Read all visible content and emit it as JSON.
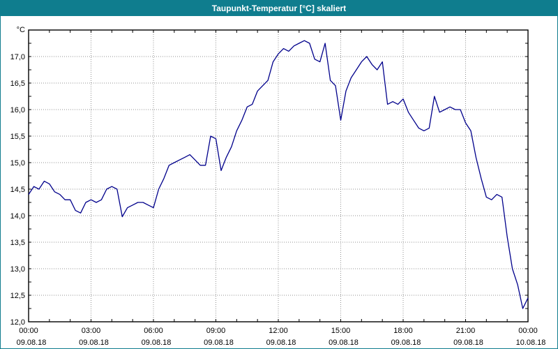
{
  "window": {
    "title": "Taupunkt-Temperatur [°C] skaliert"
  },
  "colors": {
    "titlebar": "#0f7d8e",
    "line": "#00008b",
    "grid": "#909090",
    "axis": "#000000"
  },
  "chart_data": {
    "type": "line",
    "title": "Taupunkt-Temperatur [°C] skaliert",
    "xlabel": "",
    "ylabel": "°C",
    "ylim": [
      12.0,
      17.5
    ],
    "xlim_hours": [
      0,
      24
    ],
    "grid": true,
    "legend": "none",
    "y_ticks": [
      {
        "label": "17,0",
        "value": 17.0
      },
      {
        "label": "16,5",
        "value": 16.5
      },
      {
        "label": "16,0",
        "value": 16.0
      },
      {
        "label": "15,5",
        "value": 15.5
      },
      {
        "label": "15,0",
        "value": 15.0
      },
      {
        "label": "14,5",
        "value": 14.5
      },
      {
        "label": "14,0",
        "value": 14.0
      },
      {
        "label": "13,5",
        "value": 13.5
      },
      {
        "label": "13,0",
        "value": 13.0
      },
      {
        "label": "12,5",
        "value": 12.5
      },
      {
        "label": "12,0",
        "value": 12.0
      }
    ],
    "x_ticks": [
      {
        "time": "00:00",
        "date": "09.08.18",
        "hour": 0
      },
      {
        "time": "03:00",
        "date": "09.08.18",
        "hour": 3
      },
      {
        "time": "06:00",
        "date": "09.08.18",
        "hour": 6
      },
      {
        "time": "09:00",
        "date": "09.08.18",
        "hour": 9
      },
      {
        "time": "12:00",
        "date": "09.08.18",
        "hour": 12
      },
      {
        "time": "15:00",
        "date": "09.08.18",
        "hour": 15
      },
      {
        "time": "18:00",
        "date": "09.08.18",
        "hour": 18
      },
      {
        "time": "21:00",
        "date": "09.08.18",
        "hour": 21
      },
      {
        "time": "00:00",
        "date": "10.08.18",
        "hour": 24
      }
    ],
    "x_start": 0,
    "x_step": 0.25,
    "series": [
      {
        "name": "Taupunkt-Temperatur",
        "values": [
          14.4,
          14.55,
          14.5,
          14.65,
          14.6,
          14.45,
          14.4,
          14.3,
          14.3,
          14.1,
          14.05,
          14.25,
          14.3,
          14.25,
          14.3,
          14.5,
          14.55,
          14.5,
          13.98,
          14.15,
          14.2,
          14.25,
          14.25,
          14.2,
          14.15,
          14.5,
          14.7,
          14.95,
          15.0,
          15.05,
          15.1,
          15.15,
          15.05,
          14.95,
          14.95,
          15.5,
          15.45,
          14.85,
          15.1,
          15.3,
          15.6,
          15.8,
          16.05,
          16.1,
          16.35,
          16.45,
          16.55,
          16.9,
          17.05,
          17.15,
          17.1,
          17.2,
          17.25,
          17.3,
          17.25,
          16.95,
          16.9,
          17.25,
          16.55,
          16.45,
          15.8,
          16.35,
          16.6,
          16.75,
          16.9,
          17.0,
          16.85,
          16.75,
          16.9,
          16.1,
          16.15,
          16.1,
          16.2,
          15.95,
          15.8,
          15.65,
          15.6,
          15.65,
          16.25,
          15.95,
          16.0,
          16.05,
          16.0,
          16.0,
          15.75,
          15.6,
          15.1,
          14.7,
          14.35,
          14.3,
          14.4,
          14.35,
          13.6,
          13.0,
          12.7,
          12.25,
          12.45
        ]
      }
    ]
  }
}
